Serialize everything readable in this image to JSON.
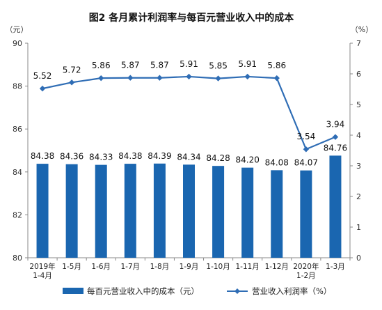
{
  "chart_data": {
    "type": "bar",
    "title": "图2  各月累计利润率与每百元营业收入中的成本",
    "left_axis_unit": "（元）",
    "right_axis_unit": "（%）",
    "ylim_left": [
      80,
      90
    ],
    "yticks_left": [
      "80",
      "82",
      "84",
      "86",
      "88",
      "90"
    ],
    "ylim_right": [
      0,
      7
    ],
    "yticks_right": [
      "0",
      "1",
      "2",
      "3",
      "4",
      "5",
      "6",
      "7"
    ],
    "categories": [
      [
        "2019年",
        "1-4月"
      ],
      [
        "1-5月"
      ],
      [
        "1-6月"
      ],
      [
        "1-7月"
      ],
      [
        "1-8月"
      ],
      [
        "1-9月"
      ],
      [
        "1-10月"
      ],
      [
        "1-11月"
      ],
      [
        "1-12月"
      ],
      [
        "2020年",
        "1-2月"
      ],
      [
        "1-3月"
      ]
    ],
    "series": [
      {
        "name": "每百元营业收入中的成本（元）",
        "type": "bar",
        "axis": "left",
        "color": "#1a66b0",
        "values": [
          84.38,
          84.36,
          84.33,
          84.38,
          84.39,
          84.34,
          84.28,
          84.2,
          84.08,
          84.07,
          84.76
        ],
        "labels": [
          "84.38",
          "84.36",
          "84.33",
          "84.38",
          "84.39",
          "84.34",
          "84.28",
          "84.20",
          "84.08",
          "84.07",
          "84.76"
        ]
      },
      {
        "name": "营业收入利润率（%）",
        "type": "line",
        "axis": "right",
        "color": "#2f6db5",
        "values": [
          5.52,
          5.72,
          5.86,
          5.87,
          5.87,
          5.91,
          5.85,
          5.91,
          5.86,
          3.54,
          3.94
        ],
        "labels": [
          "5.52",
          "5.72",
          "5.86",
          "5.87",
          "5.87",
          "5.91",
          "5.85",
          "5.91",
          "5.86",
          "3.54",
          "3.94"
        ]
      }
    ],
    "legend_position": "bottom",
    "grid": false
  }
}
